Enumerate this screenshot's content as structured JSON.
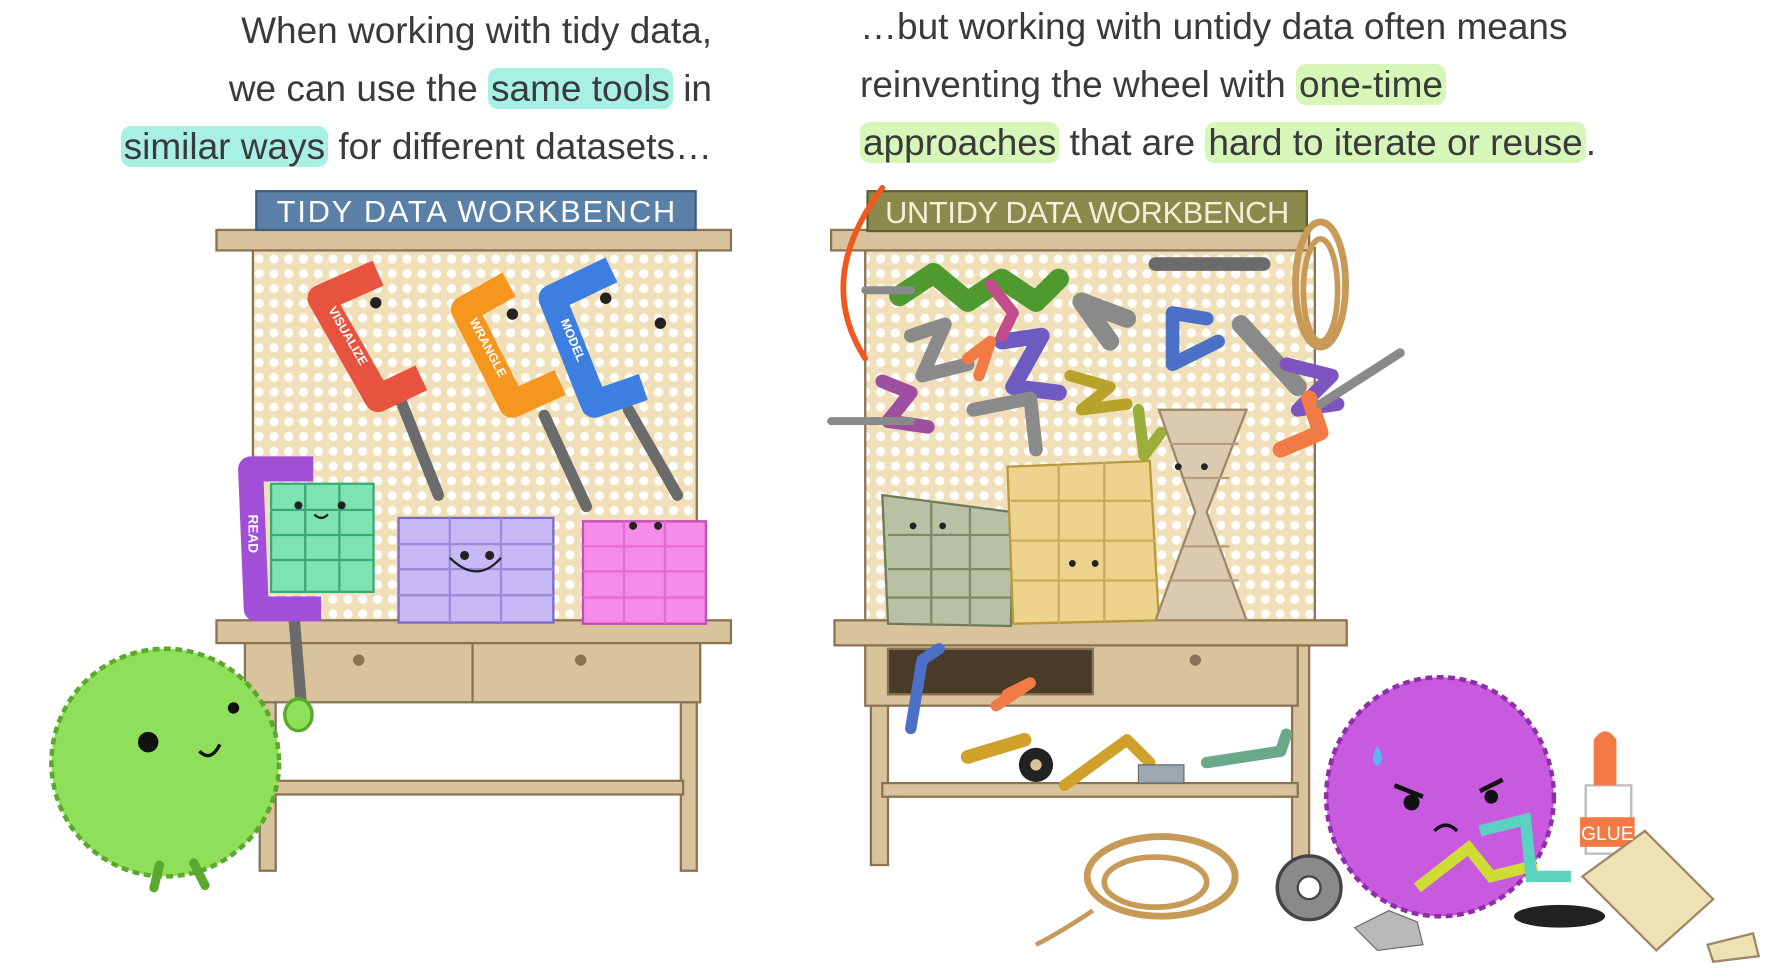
{
  "left_caption": {
    "highlight_color": "#a8f0e4",
    "lines": [
      [
        {
          "text": "When working with tidy data,"
        }
      ],
      [
        {
          "text": "we can use the "
        },
        {
          "text": "same tools",
          "highlight": true
        },
        {
          "text": " in"
        }
      ],
      [
        {
          "text": "similar ways",
          "highlight": true
        },
        {
          "text": " for different datasets…"
        }
      ]
    ]
  },
  "right_caption": {
    "highlight_color": "#d6f7b8",
    "lines": [
      [
        {
          "text": "…but working with untidy data often means"
        }
      ],
      [
        {
          "text": "reinventing the wheel with "
        },
        {
          "text": "one-time",
          "highlight": true
        }
      ],
      [
        {
          "text": "approaches",
          "highlight": true
        },
        {
          "text": " that are "
        },
        {
          "text": "hard to iterate or reuse",
          "highlight": true
        },
        {
          "text": "."
        }
      ]
    ]
  },
  "tidy_bench": {
    "sign": "TIDY DATA WORKBENCH",
    "clamps": [
      "VISUALIZE",
      "WRANGLE",
      "MODEL",
      "READ"
    ]
  },
  "untidy_bench": {
    "sign": "UNTIDY DATA WORKBENCH",
    "glue": "GLUE"
  }
}
